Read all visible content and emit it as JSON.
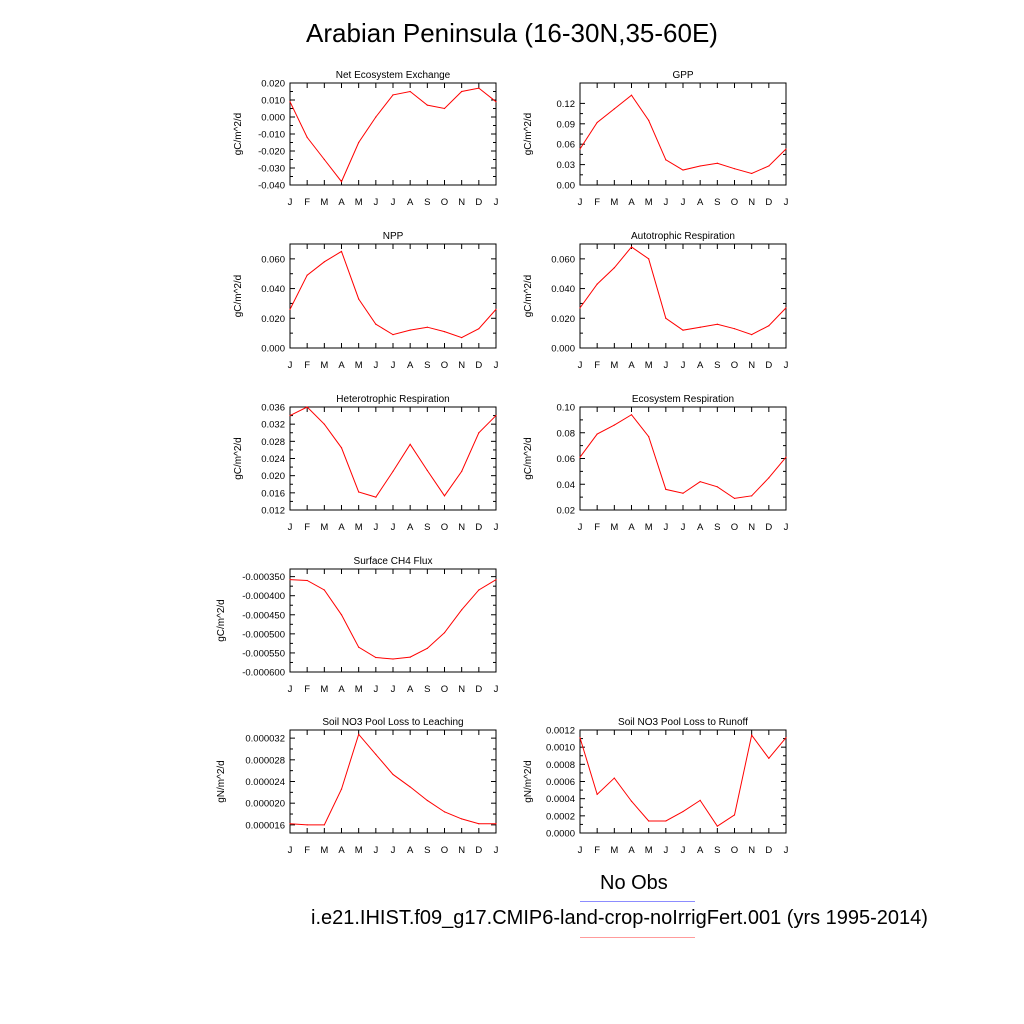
{
  "title": "Arabian Peninsula (16-30N,35-60E)",
  "months": [
    "J",
    "F",
    "M",
    "A",
    "M",
    "J",
    "J",
    "A",
    "S",
    "O",
    "N",
    "D",
    "J"
  ],
  "legend": {
    "obs_label": "No Obs",
    "obs_color": "#8c8cff",
    "model_label": "i.e21.IHIST.f09_g17.CMIP6-land-crop-noIrrigFert.001 (yrs 1995-2014)",
    "model_color": "#ff9b9b"
  },
  "series_color": "#ff0000",
  "chart_data": [
    {
      "type": "line",
      "title": "Net Ecosystem Exchange",
      "ylabel": "gC/m^2/d",
      "ylim": [
        -0.04,
        0.02
      ],
      "yticks": [
        -0.04,
        -0.03,
        -0.02,
        -0.01,
        0.0,
        0.01,
        0.02
      ],
      "ytick_labels": [
        "-0.040",
        "-0.030",
        "-0.020",
        "-0.010",
        "0.000",
        "0.010",
        "0.020"
      ],
      "values": [
        0.009,
        -0.012,
        -0.025,
        -0.038,
        -0.015,
        0.0,
        0.013,
        0.015,
        0.007,
        0.005,
        0.015,
        0.017,
        0.009
      ]
    },
    {
      "type": "line",
      "title": "GPP",
      "ylabel": "gC/m^2/d",
      "ylim": [
        0.0,
        0.15
      ],
      "yticks": [
        0.0,
        0.03,
        0.06,
        0.09,
        0.12
      ],
      "ytick_labels": [
        "0.00",
        "0.03",
        "0.06",
        "0.09",
        "0.12"
      ],
      "values": [
        0.053,
        0.092,
        0.112,
        0.132,
        0.095,
        0.037,
        0.022,
        0.028,
        0.032,
        0.024,
        0.017,
        0.028,
        0.053
      ]
    },
    {
      "type": "line",
      "title": "NPP",
      "ylabel": "gC/m^2/d",
      "ylim": [
        0.0,
        0.07
      ],
      "yticks": [
        0.0,
        0.02,
        0.04,
        0.06
      ],
      "ytick_labels": [
        "0.000",
        "0.020",
        "0.040",
        "0.060"
      ],
      "values": [
        0.026,
        0.049,
        0.058,
        0.065,
        0.033,
        0.016,
        0.009,
        0.012,
        0.014,
        0.011,
        0.007,
        0.013,
        0.026
      ]
    },
    {
      "type": "line",
      "title": "Autotrophic Respiration",
      "ylabel": "gC/m^2/d",
      "ylim": [
        0.0,
        0.07
      ],
      "yticks": [
        0.0,
        0.02,
        0.04,
        0.06
      ],
      "ytick_labels": [
        "0.000",
        "0.020",
        "0.040",
        "0.060"
      ],
      "values": [
        0.027,
        0.043,
        0.054,
        0.068,
        0.06,
        0.02,
        0.012,
        0.014,
        0.016,
        0.013,
        0.009,
        0.015,
        0.027
      ]
    },
    {
      "type": "line",
      "title": "Heterotrophic Respiration",
      "ylabel": "gC/m^2/d",
      "ylim": [
        0.012,
        0.036
      ],
      "yticks": [
        0.012,
        0.016,
        0.02,
        0.024,
        0.028,
        0.032,
        0.036
      ],
      "ytick_labels": [
        "0.012",
        "0.016",
        "0.020",
        "0.024",
        "0.028",
        "0.032",
        "0.036"
      ],
      "values": [
        0.034,
        0.036,
        0.032,
        0.0265,
        0.0162,
        0.015,
        0.021,
        0.0273,
        0.0212,
        0.0153,
        0.021,
        0.03,
        0.034
      ]
    },
    {
      "type": "line",
      "title": "Ecosystem Respiration",
      "ylabel": "gC/m^2/d",
      "ylim": [
        0.02,
        0.1
      ],
      "yticks": [
        0.02,
        0.04,
        0.06,
        0.08,
        0.1
      ],
      "ytick_labels": [
        "0.02",
        "0.04",
        "0.06",
        "0.08",
        "0.10"
      ],
      "values": [
        0.061,
        0.079,
        0.086,
        0.094,
        0.077,
        0.036,
        0.033,
        0.042,
        0.038,
        0.029,
        0.031,
        0.045,
        0.061
      ]
    },
    {
      "type": "line",
      "title": "Surface CH4 Flux",
      "ylabel": "gC/m^2/d",
      "ylim": [
        -0.0006,
        -0.00033
      ],
      "yticks": [
        -0.0006,
        -0.00055,
        -0.0005,
        -0.00045,
        -0.0004,
        -0.00035
      ],
      "ytick_labels": [
        "-0.000600",
        "-0.000550",
        "-0.000500",
        "-0.000450",
        "-0.000400",
        "-0.000350"
      ],
      "values": [
        -0.000358,
        -0.00036,
        -0.000385,
        -0.00045,
        -0.000535,
        -0.000562,
        -0.000566,
        -0.000561,
        -0.000538,
        -0.000497,
        -0.000437,
        -0.000385,
        -0.000358
      ]
    },
    {
      "type": "line",
      "title": "Soil NO3 Pool Loss to Leaching",
      "ylabel": "gN/m^2/d",
      "ylim": [
        1.45e-05,
        3.35e-05
      ],
      "yticks": [
        1.6e-05,
        2e-05,
        2.4e-05,
        2.8e-05,
        3.2e-05
      ],
      "ytick_labels": [
        "0.000016",
        "0.000020",
        "0.000024",
        "0.000028",
        "0.000032"
      ],
      "values": [
        1.62e-05,
        1.6e-05,
        1.6e-05,
        2.26e-05,
        3.27e-05,
        2.9e-05,
        2.53e-05,
        2.3e-05,
        2.05e-05,
        1.84e-05,
        1.71e-05,
        1.62e-05,
        1.62e-05
      ]
    },
    {
      "type": "line",
      "title": "Soil NO3 Pool Loss to Runoff",
      "ylabel": "gN/m^2/d",
      "ylim": [
        0.0,
        0.0012
      ],
      "yticks": [
        0.0,
        0.0002,
        0.0004,
        0.0006,
        0.0008,
        0.001,
        0.0012
      ],
      "ytick_labels": [
        "0.0000",
        "0.0002",
        "0.0004",
        "0.0006",
        "0.0008",
        "0.0010",
        "0.0012"
      ],
      "values": [
        0.00111,
        0.00045,
        0.00064,
        0.00037,
        0.00014,
        0.00014,
        0.00025,
        0.00038,
        8e-05,
        0.00021,
        0.00114,
        0.00087,
        0.00111
      ]
    }
  ]
}
